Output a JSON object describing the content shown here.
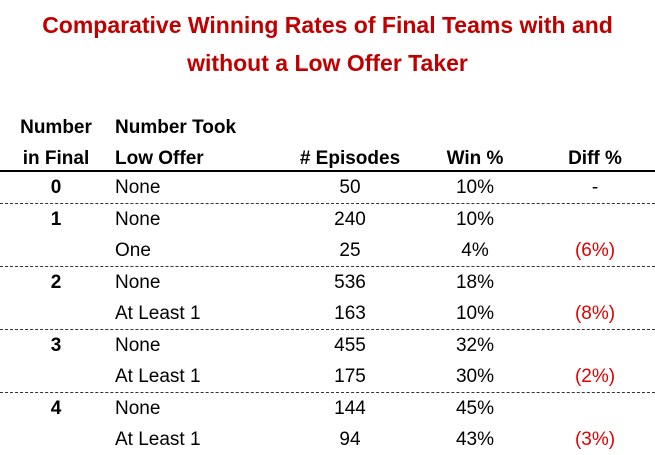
{
  "title": {
    "line1": "Comparative Winning Rates of Final Teams with and",
    "line2": "without a Low Offer Taker",
    "color": "#c00000"
  },
  "header": {
    "number_in_final_1": "Number",
    "number_in_final_2": "in Final",
    "number_took_1": "Number Took",
    "number_took_2": "Low Offer",
    "episodes": "# Episodes",
    "win": "Win %",
    "diff": "Diff %"
  },
  "diff_color": "#e00000",
  "groups": [
    {
      "number": "0",
      "rows": [
        {
          "took": "None",
          "episodes": "50",
          "win": "10%",
          "diff": "-"
        }
      ]
    },
    {
      "number": "1",
      "rows": [
        {
          "took": "None",
          "episodes": "240",
          "win": "10%",
          "diff": ""
        },
        {
          "took": "One",
          "episodes": "25",
          "win": "4%",
          "diff": "(6%)"
        }
      ]
    },
    {
      "number": "2",
      "rows": [
        {
          "took": "None",
          "episodes": "536",
          "win": "18%",
          "diff": ""
        },
        {
          "took": "At Least 1",
          "episodes": "163",
          "win": "10%",
          "diff": "(8%)"
        }
      ]
    },
    {
      "number": "3",
      "rows": [
        {
          "took": "None",
          "episodes": "455",
          "win": "32%",
          "diff": ""
        },
        {
          "took": "At Least 1",
          "episodes": "175",
          "win": "30%",
          "diff": "(2%)"
        }
      ]
    },
    {
      "number": "4",
      "rows": [
        {
          "took": "None",
          "episodes": "144",
          "win": "45%",
          "diff": ""
        },
        {
          "took": "At Least 1",
          "episodes": "94",
          "win": "43%",
          "diff": "(3%)"
        }
      ]
    }
  ]
}
